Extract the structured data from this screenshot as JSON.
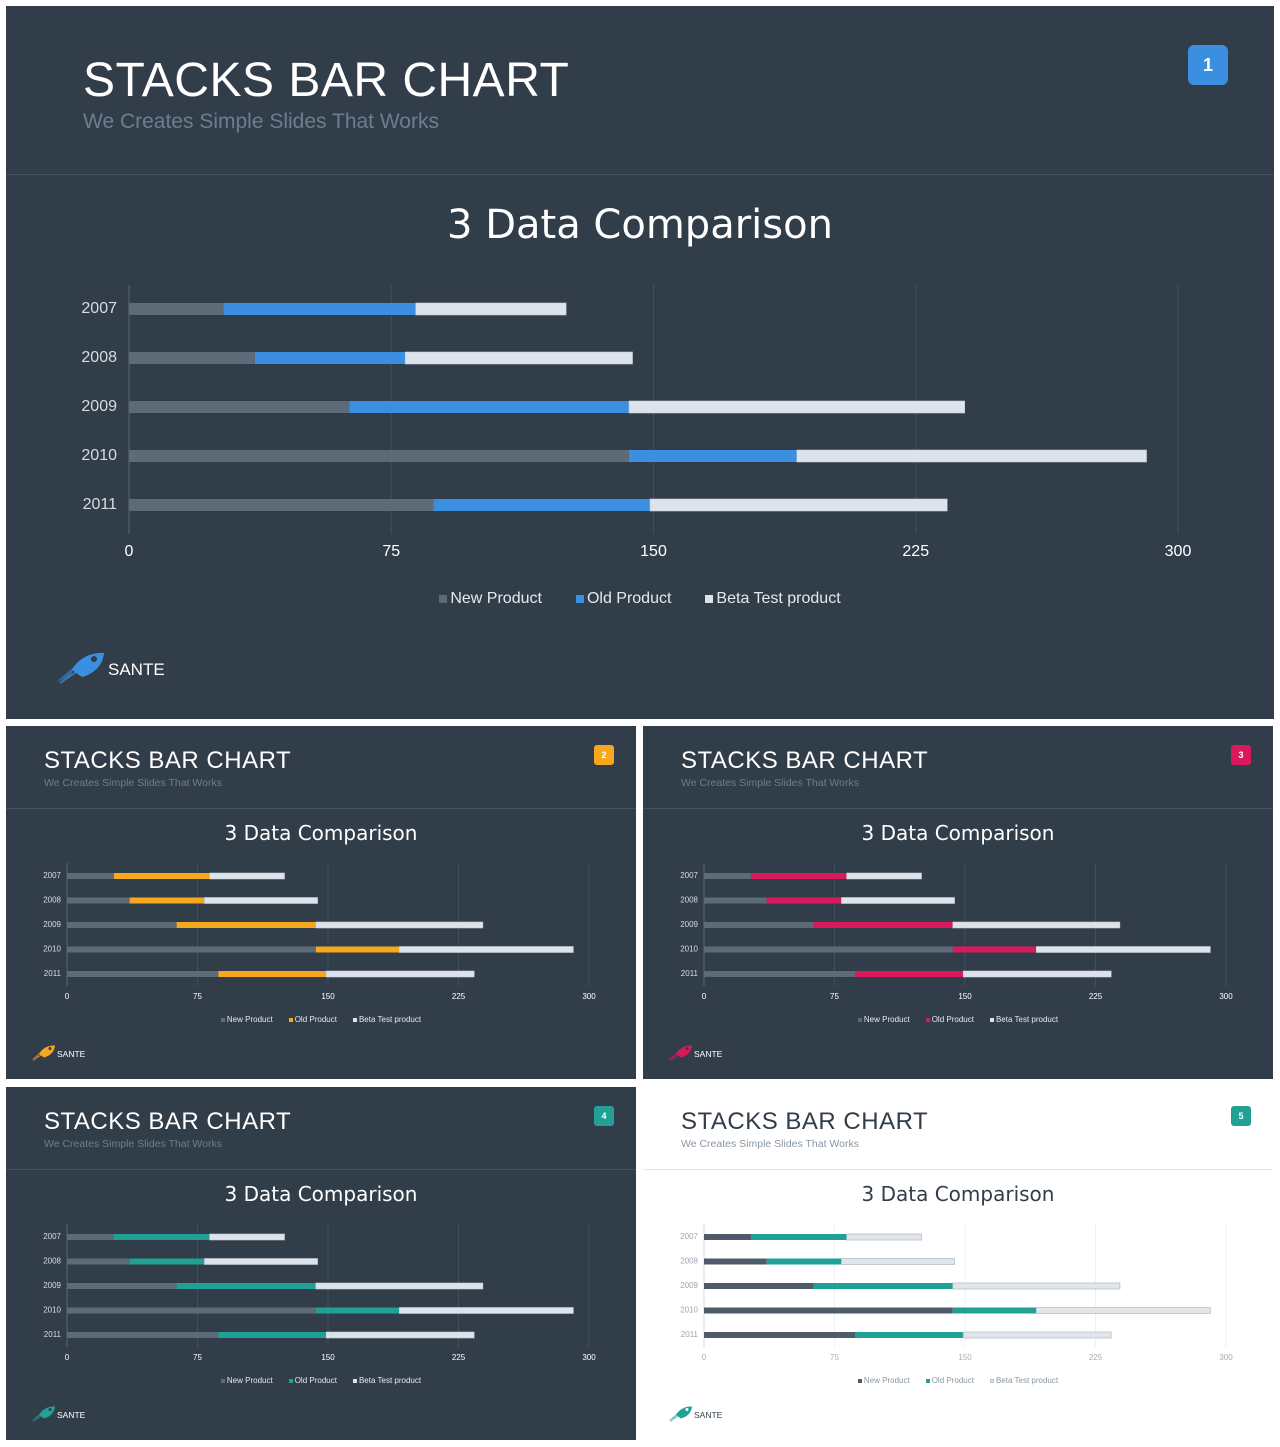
{
  "slides": [
    {
      "number": "1",
      "title": "STACKS BAR CHART",
      "subtitle": "We Creates Simple Slides That Works",
      "chart_title": "3 Data Comparison",
      "logo_text": "SANTE",
      "accent": "#3a8fe0",
      "theme": "dark"
    },
    {
      "number": "2",
      "title": "STACKS BAR CHART",
      "subtitle": "We Creates Simple Slides That Works",
      "chart_title": "3 Data Comparison",
      "logo_text": "SANTE",
      "accent": "#f5a81d",
      "theme": "dark"
    },
    {
      "number": "3",
      "title": "STACKS BAR CHART",
      "subtitle": "We Creates Simple Slides That Works",
      "chart_title": "3 Data Comparison",
      "logo_text": "SANTE",
      "accent": "#d91a5a",
      "theme": "dark"
    },
    {
      "number": "4",
      "title": "STACKS BAR CHART",
      "subtitle": "We Creates Simple Slides That Works",
      "chart_title": "3 Data Comparison",
      "logo_text": "SANTE",
      "accent": "#21a196",
      "theme": "dark"
    },
    {
      "number": "5",
      "title": "STACKS BAR CHART",
      "subtitle": "We Creates Simple Slides That Works",
      "chart_title": "3 Data Comparison",
      "logo_text": "SANTE",
      "accent": "#21a196",
      "theme": "light"
    }
  ],
  "legend": [
    "New Product",
    "Old Product",
    "Beta Test product"
  ],
  "chart_data": {
    "type": "bar",
    "orientation": "horizontal",
    "stacked": true,
    "title": "3 Data Comparison",
    "categories": [
      "2007",
      "2008",
      "2009",
      "2010",
      "2011"
    ],
    "series": [
      {
        "name": "New Product",
        "values": [
          27,
          36,
          63,
          143,
          87
        ]
      },
      {
        "name": "Old Product",
        "values": [
          55,
          43,
          80,
          48,
          62
        ]
      },
      {
        "name": "Beta Test product",
        "values": [
          43,
          65,
          96,
          100,
          85
        ]
      }
    ],
    "xlim": [
      0,
      300
    ],
    "xticks": [
      "0",
      "75",
      "150",
      "225",
      "300"
    ],
    "grid": "vertical",
    "legend_position": "bottom",
    "colors": {
      "new_product_dark": "#5d6a78",
      "new_product_light": "#4f5b68",
      "beta_dark": "#dde3ea",
      "beta_light": "#e1e6eb"
    }
  }
}
